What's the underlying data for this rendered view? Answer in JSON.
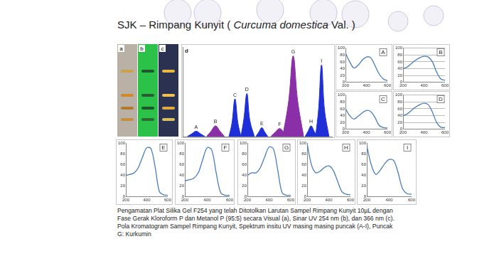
{
  "title": {
    "prefix": "SJK – Rimpang Kunyit ( ",
    "italic": "Curcuma domestica",
    "suffix": " Val. )"
  },
  "tlc_labels": [
    "a",
    "b",
    "c"
  ],
  "caption": [
    "Pengamatan Plat Silika Gel F254 yang telah Ditotolkan Larutan Sampel Rimpang Kunyit 10µL dengan",
    "Fase Gerak Kloroform P dan Metanol P (95:5) secara Visual (a), Sinar UV 254 nm (b), dan 366 nm (c).",
    "Pola Kromatogram Sampel Rimpang Kunyit, Spektrum insitu UV masing masing puncak (A-I), Puncak",
    "G: Kurkumin"
  ],
  "chart_data": [
    {
      "type": "area",
      "title": "d",
      "xlim": [
        0,
        10
      ],
      "ylim": [
        0,
        100
      ],
      "tick_labels": false,
      "grid": false,
      "series": [
        {
          "name": "A",
          "color": "#1f2fd8",
          "x": [
            0.3,
            0.6,
            0.9,
            1.2,
            1.5
          ],
          "values": [
            0,
            3,
            6,
            3,
            0
          ]
        },
        {
          "name": "B",
          "color": "#8b2fa8",
          "x": [
            1.6,
            1.9,
            2.2,
            2.5,
            2.8
          ],
          "values": [
            0,
            6,
            12,
            6,
            0
          ]
        },
        {
          "name": "C",
          "color": "#1f2fd8",
          "x": [
            3.1,
            3.3,
            3.5,
            3.7,
            3.9
          ],
          "values": [
            0,
            15,
            42,
            15,
            0
          ]
        },
        {
          "name": "D",
          "color": "#1f2fd8",
          "x": [
            3.9,
            4.1,
            4.3,
            4.5,
            4.8
          ],
          "values": [
            0,
            20,
            48,
            18,
            0
          ]
        },
        {
          "name": "E",
          "color": "#1f2fd8",
          "x": [
            4.9,
            5.1,
            5.3,
            5.5,
            5.7
          ],
          "values": [
            0,
            5,
            10,
            5,
            0
          ]
        },
        {
          "name": "F",
          "color": "#8b2fa8",
          "x": [
            5.9,
            6.2,
            6.5,
            6.8,
            7.0
          ],
          "values": [
            0,
            5,
            9,
            4,
            0
          ]
        },
        {
          "name": "G",
          "color": "#8b2fa8",
          "x": [
            6.7,
            7.1,
            7.4,
            7.7,
            8.1
          ],
          "values": [
            0,
            40,
            90,
            40,
            0
          ]
        },
        {
          "name": "H",
          "color": "#1f2fd8",
          "x": [
            8.2,
            8.4,
            8.6,
            8.8,
            9.0
          ],
          "values": [
            0,
            6,
            12,
            6,
            0
          ]
        },
        {
          "name": "I",
          "color": "#1f2fd8",
          "x": [
            8.9,
            9.1,
            9.3,
            9.5,
            9.8
          ],
          "values": [
            0,
            30,
            80,
            30,
            0
          ]
        }
      ]
    },
    {
      "type": "line",
      "title": "A",
      "x": [
        200,
        240,
        280,
        320,
        360,
        400,
        440,
        480,
        520,
        560,
        600
      ],
      "values": [
        85,
        60,
        42,
        50,
        65,
        74,
        72,
        50,
        25,
        10,
        5
      ],
      "color": "#4a7ebb",
      "xlim": [
        200,
        600
      ],
      "xticks": [
        200,
        400,
        600
      ],
      "ylim": [
        0,
        100
      ],
      "yticks": [
        0,
        20,
        40,
        60,
        80,
        100
      ],
      "grid": false
    },
    {
      "type": "line",
      "title": "B",
      "x": [
        200,
        240,
        280,
        320,
        360,
        400,
        440,
        480,
        520,
        560,
        600
      ],
      "values": [
        40,
        45,
        55,
        65,
        72,
        76,
        74,
        60,
        30,
        10,
        6
      ],
      "color": "#4a7ebb",
      "xlim": [
        200,
        600
      ],
      "xticks": [
        200,
        400,
        600
      ],
      "ylim": [
        0,
        100
      ],
      "yticks": [
        0,
        20,
        40,
        60,
        80,
        100
      ],
      "grid": true
    },
    {
      "type": "line",
      "title": "C",
      "x": [
        200,
        240,
        280,
        320,
        360,
        400,
        440,
        480,
        520,
        560,
        600
      ],
      "values": [
        60,
        40,
        30,
        38,
        48,
        55,
        52,
        35,
        12,
        5,
        4
      ],
      "color": "#4a7ebb",
      "xlim": [
        200,
        600
      ],
      "xticks": [
        200,
        400,
        600
      ],
      "ylim": [
        0,
        100
      ],
      "yticks": [
        0,
        20,
        40,
        60,
        80,
        100
      ],
      "grid": false
    },
    {
      "type": "line",
      "title": "D",
      "x": [
        200,
        240,
        280,
        320,
        360,
        400,
        440,
        480,
        520,
        560,
        600
      ],
      "values": [
        40,
        45,
        55,
        65,
        72,
        76,
        72,
        50,
        20,
        6,
        5
      ],
      "color": "#4a7ebb",
      "xlim": [
        200,
        600
      ],
      "xticks": [
        200,
        400,
        600
      ],
      "ylim": [
        0,
        100
      ],
      "yticks": [
        0,
        20,
        40,
        60,
        80,
        100
      ],
      "grid": true
    },
    {
      "type": "line",
      "title": "E",
      "x": [
        200,
        240,
        280,
        320,
        360,
        400,
        440,
        480,
        520,
        560,
        600
      ],
      "values": [
        40,
        42,
        45,
        55,
        75,
        92,
        90,
        55,
        10,
        4,
        3
      ],
      "color": "#4a7ebb",
      "xlim": [
        200,
        600
      ],
      "xticks": [
        200,
        400,
        600
      ],
      "ylim": [
        0,
        100
      ],
      "yticks": [
        0,
        20,
        40,
        60,
        80,
        100
      ],
      "grid": false
    },
    {
      "type": "line",
      "title": "F",
      "x": [
        200,
        240,
        280,
        320,
        360,
        400,
        440,
        480,
        520,
        560,
        600
      ],
      "values": [
        30,
        32,
        35,
        45,
        70,
        92,
        88,
        45,
        8,
        3,
        3
      ],
      "color": "#4a7ebb",
      "xlim": [
        200,
        600
      ],
      "xticks": [
        200,
        400,
        600
      ],
      "ylim": [
        0,
        100
      ],
      "yticks": [
        0,
        20,
        40,
        60,
        80,
        100
      ],
      "grid": false
    },
    {
      "type": "line",
      "title": "G",
      "x": [
        200,
        240,
        280,
        320,
        360,
        400,
        440,
        480,
        520,
        560,
        600
      ],
      "values": [
        40,
        45,
        45,
        55,
        75,
        93,
        90,
        50,
        8,
        3,
        3
      ],
      "color": "#4a7ebb",
      "xlim": [
        200,
        600
      ],
      "xticks": [
        200,
        400,
        600
      ],
      "ylim": [
        0,
        100
      ],
      "yticks": [
        0,
        20,
        40,
        60,
        80,
        100
      ],
      "grid": false
    },
    {
      "type": "line",
      "title": "H",
      "x": [
        200,
        240,
        280,
        320,
        360,
        400,
        440,
        480,
        520,
        560,
        600
      ],
      "values": [
        100,
        60,
        45,
        48,
        55,
        58,
        50,
        30,
        10,
        5,
        4
      ],
      "color": "#4a7ebb",
      "xlim": [
        200,
        600
      ],
      "xticks": [
        200,
        400,
        600
      ],
      "ylim": [
        0,
        100
      ],
      "yticks": [
        0,
        20,
        40,
        60,
        80,
        100
      ],
      "grid": false
    },
    {
      "type": "line",
      "title": "I",
      "x": [
        200,
        240,
        280,
        320,
        360,
        400,
        440,
        480,
        520,
        560,
        600
      ],
      "values": [
        95,
        60,
        42,
        50,
        62,
        70,
        68,
        45,
        15,
        6,
        5
      ],
      "color": "#4a7ebb",
      "xlim": [
        200,
        600
      ],
      "xticks": [
        200,
        400,
        600
      ],
      "ylim": [
        0,
        100
      ],
      "yticks": [
        0,
        20,
        40,
        60,
        80,
        100
      ],
      "grid": false
    }
  ]
}
